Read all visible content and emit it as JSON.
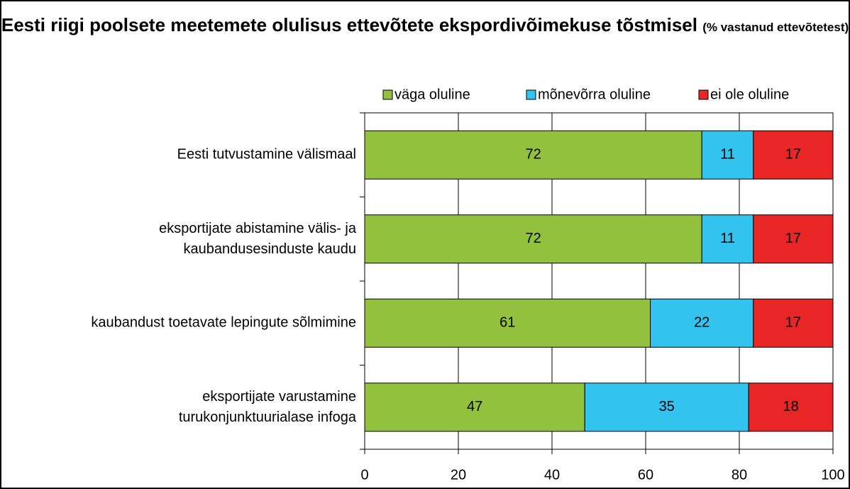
{
  "chart_data": {
    "type": "stacked-barh",
    "title": "Eesti riigi poolsete meetemete olulisus ettevõtete ekspordivõimekuse tõstmisel",
    "subtitle": "(% vastanud ettevõtetest)",
    "categories": [
      "Eesti tutvustamine välismaal",
      "eksportijate abistamine välis- ja\nkaubandusesinduste kaudu",
      "kaubandust toetavate lepingute sõlmimine",
      "eksportijate varustamine\nturukonjunktuurialase infoga"
    ],
    "series": [
      {
        "name": "väga oluline",
        "color": "#92c13e",
        "values": [
          72,
          72,
          61,
          47
        ]
      },
      {
        "name": "mõnevõrra oluline",
        "color": "#33c3ef",
        "values": [
          11,
          11,
          22,
          35
        ]
      },
      {
        "name": "ei ole oluline",
        "color": "#e82626",
        "values": [
          17,
          17,
          17,
          18
        ]
      }
    ],
    "xlim": [
      0,
      100
    ],
    "xticks": [
      0,
      20,
      40,
      60,
      80,
      100
    ],
    "grid": true,
    "legend": "top"
  }
}
